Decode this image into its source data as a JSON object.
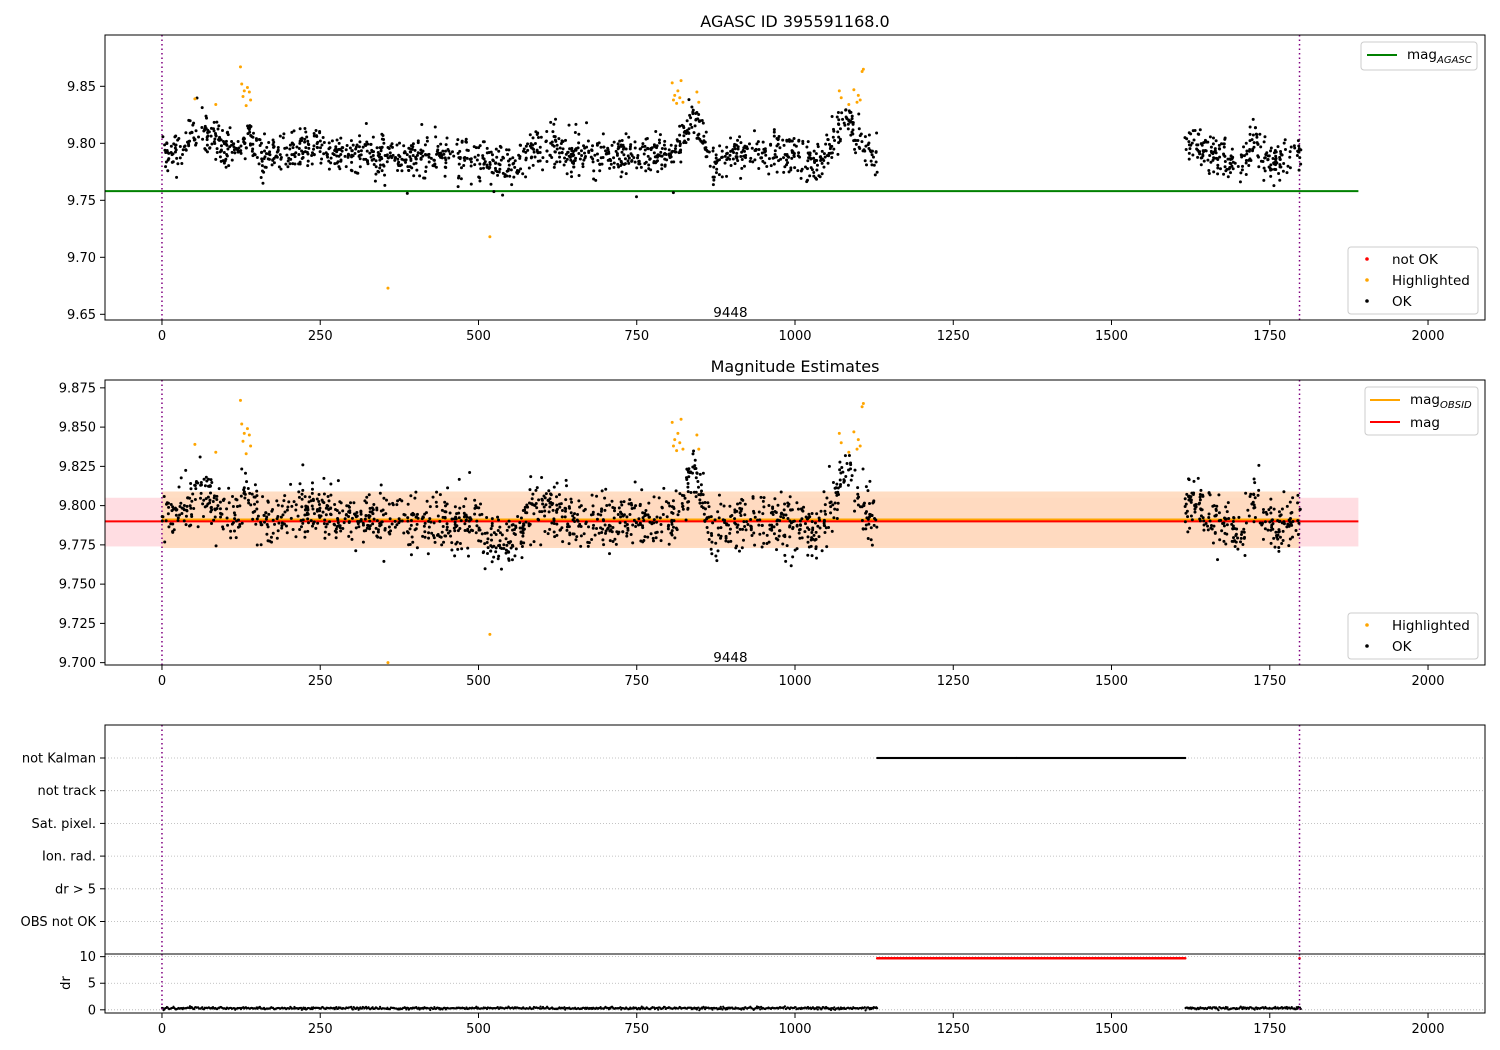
{
  "chart_data": [
    {
      "type": "scatter",
      "name": "magnitude-history",
      "title": "AGASC ID 395591168.0",
      "xlim": [
        -90,
        2090
      ],
      "ylim": [
        9.645,
        9.895
      ],
      "x_ticks": [
        0,
        250,
        500,
        750,
        1000,
        1250,
        1500,
        1750,
        2000
      ],
      "x_tick_labels": [
        "0",
        "250",
        "500",
        "750",
        "1000",
        "1250",
        "1500",
        "1750",
        "2000"
      ],
      "y_ticks": [
        9.65,
        9.7,
        9.75,
        9.8,
        9.85
      ],
      "y_tick_labels": [
        "9.65",
        "9.70",
        "9.75",
        "9.80",
        "9.85"
      ],
      "obsid_boundaries": [
        0,
        1797
      ],
      "obsid_label": {
        "text": "9448",
        "x": 898,
        "y": 9.651
      },
      "reference_line": {
        "name": "mag",
        "subscript": "AGASC",
        "y": 9.758,
        "x_range": [
          -90,
          1890
        ],
        "color": "#008000"
      },
      "ok_segments": [
        {
          "x_range": [
            0,
            1130
          ],
          "baseline": 9.79,
          "noise": 0.011,
          "bumps": [
            [
              60,
              30,
              0.02
            ],
            [
              135,
              15,
              0.015
            ],
            [
              230,
              40,
              0.008
            ],
            [
              540,
              40,
              -0.012
            ],
            [
              600,
              30,
              0.01
            ],
            [
              840,
              20,
              0.03
            ],
            [
              870,
              10,
              -0.015
            ],
            [
              1040,
              15,
              -0.01
            ],
            [
              1080,
              25,
              0.03
            ]
          ]
        },
        {
          "x_range": [
            1615,
            1800
          ],
          "baseline": 9.792,
          "noise": 0.01,
          "bumps": [
            [
              1630,
              12,
              0.01
            ],
            [
              1700,
              20,
              -0.01
            ],
            [
              1725,
              10,
              0.012
            ],
            [
              1760,
              20,
              -0.008
            ]
          ]
        }
      ],
      "highlighted_points": [
        [
          52,
          9.839
        ],
        [
          85,
          9.834
        ],
        [
          124,
          9.867
        ],
        [
          126,
          9.852
        ],
        [
          128,
          9.841
        ],
        [
          130,
          9.846
        ],
        [
          133,
          9.833
        ],
        [
          135,
          9.849
        ],
        [
          138,
          9.845
        ],
        [
          140,
          9.838
        ],
        [
          357,
          9.673
        ],
        [
          518,
          9.718
        ],
        [
          806,
          9.853
        ],
        [
          808,
          9.838
        ],
        [
          810,
          9.842
        ],
        [
          813,
          9.835
        ],
        [
          815,
          9.846
        ],
        [
          818,
          9.84
        ],
        [
          820,
          9.855
        ],
        [
          823,
          9.836
        ],
        [
          845,
          9.845
        ],
        [
          848,
          9.836
        ],
        [
          1070,
          9.846
        ],
        [
          1073,
          9.84
        ],
        [
          1085,
          9.834
        ],
        [
          1093,
          9.847
        ],
        [
          1098,
          9.836
        ],
        [
          1100,
          9.842
        ],
        [
          1103,
          9.838
        ],
        [
          1106,
          9.863
        ],
        [
          1108,
          9.865
        ]
      ],
      "legend_lines": [
        {
          "label": "mag",
          "subscript": "AGASC",
          "color": "#008000"
        }
      ],
      "legend_points": [
        {
          "label": "not OK",
          "color": "#ff0000"
        },
        {
          "label": "Highlighted",
          "color": "#ffa500"
        },
        {
          "label": "OK",
          "color": "#000000"
        }
      ],
      "legend_placement": [
        "top-right",
        "bottom-right"
      ],
      "grid": false
    },
    {
      "type": "scatter",
      "name": "magnitude-estimates",
      "title": "Magnitude Estimates",
      "xlim": [
        -90,
        2090
      ],
      "ylim": [
        9.6985,
        9.88
      ],
      "x_ticks": [
        0,
        250,
        500,
        750,
        1000,
        1250,
        1500,
        1750,
        2000
      ],
      "x_tick_labels": [
        "0",
        "250",
        "500",
        "750",
        "1000",
        "1250",
        "1500",
        "1750",
        "2000"
      ],
      "y_ticks": [
        9.7,
        9.725,
        9.75,
        9.775,
        9.8,
        9.825,
        9.85,
        9.875
      ],
      "y_tick_labels": [
        "9.700",
        "9.725",
        "9.750",
        "9.775",
        "9.800",
        "9.825",
        "9.850",
        "9.875"
      ],
      "obsid_boundaries": [
        0,
        1797
      ],
      "obsid_label": {
        "text": "9448",
        "x": 898,
        "y": 9.703
      },
      "mag_line": {
        "name": "mag",
        "y": 9.79,
        "x_range": [
          -90,
          1890
        ],
        "band": [
          9.774,
          9.805
        ],
        "color": "#ff0000",
        "band_color": "#ffdde2"
      },
      "mag_obsid_line": {
        "name": "mag",
        "subscript": "OBSID",
        "y": 9.791,
        "x_range": [
          0,
          1797
        ],
        "band": [
          9.773,
          9.809
        ],
        "color": "#ffa500",
        "band_color": "#ffd9bd"
      },
      "ok_segments": [
        {
          "x_range": [
            0,
            1130
          ],
          "baseline": 9.79,
          "noise": 0.011,
          "bumps": [
            [
              60,
              30,
              0.02
            ],
            [
              135,
              15,
              0.015
            ],
            [
              230,
              40,
              0.008
            ],
            [
              540,
              40,
              -0.012
            ],
            [
              600,
              30,
              0.01
            ],
            [
              840,
              20,
              0.03
            ],
            [
              870,
              10,
              -0.015
            ],
            [
              1040,
              15,
              -0.01
            ],
            [
              1080,
              25,
              0.03
            ]
          ]
        },
        {
          "x_range": [
            1615,
            1800
          ],
          "baseline": 9.792,
          "noise": 0.01,
          "bumps": [
            [
              1630,
              12,
              0.01
            ],
            [
              1700,
              20,
              -0.01
            ],
            [
              1725,
              10,
              0.012
            ],
            [
              1760,
              20,
              -0.008
            ]
          ]
        }
      ],
      "highlighted_points": [
        [
          52,
          9.839
        ],
        [
          85,
          9.834
        ],
        [
          124,
          9.867
        ],
        [
          126,
          9.852
        ],
        [
          128,
          9.841
        ],
        [
          130,
          9.846
        ],
        [
          133,
          9.833
        ],
        [
          135,
          9.849
        ],
        [
          138,
          9.845
        ],
        [
          140,
          9.838
        ],
        [
          357,
          9.7
        ],
        [
          518,
          9.718
        ],
        [
          806,
          9.853
        ],
        [
          808,
          9.838
        ],
        [
          810,
          9.842
        ],
        [
          813,
          9.835
        ],
        [
          815,
          9.846
        ],
        [
          818,
          9.84
        ],
        [
          820,
          9.855
        ],
        [
          823,
          9.836
        ],
        [
          845,
          9.845
        ],
        [
          848,
          9.836
        ],
        [
          1070,
          9.846
        ],
        [
          1073,
          9.84
        ],
        [
          1085,
          9.834
        ],
        [
          1093,
          9.847
        ],
        [
          1098,
          9.836
        ],
        [
          1100,
          9.842
        ],
        [
          1103,
          9.838
        ],
        [
          1106,
          9.863
        ],
        [
          1108,
          9.865
        ]
      ],
      "legend_lines": [
        {
          "label": "mag",
          "subscript": "OBSID",
          "color": "#ffa500"
        },
        {
          "label": "mag",
          "subscript": "",
          "color": "#ff0000"
        }
      ],
      "legend_points": [
        {
          "label": "Highlighted",
          "color": "#ffa500"
        },
        {
          "label": "OK",
          "color": "#000000"
        }
      ],
      "legend_placement": [
        "top-right",
        "bottom-right"
      ],
      "grid": false
    },
    {
      "type": "scatter",
      "name": "flags",
      "title": "",
      "xlim": [
        -90,
        2090
      ],
      "categories": [
        "not Kalman",
        "not track",
        "Sat. pixel.",
        "Ion. rad.",
        "dr > 5",
        "OBS not OK"
      ],
      "flag_ranges": {
        "not Kalman": [
          [
            1130,
            1617
          ]
        ]
      },
      "obsid_boundaries": [
        0,
        1797
      ],
      "grid": "horizontal dotted"
    },
    {
      "type": "scatter",
      "name": "dr",
      "title": "",
      "ylabel": "dr",
      "xlim": [
        -90,
        2090
      ],
      "ylim": [
        -0.6,
        10.5
      ],
      "x_ticks": [
        0,
        250,
        500,
        750,
        1000,
        1250,
        1500,
        1750,
        2000
      ],
      "x_tick_labels": [
        "0",
        "250",
        "500",
        "750",
        "1000",
        "1250",
        "1500",
        "1750",
        "2000"
      ],
      "y_ticks": [
        0,
        5,
        10
      ],
      "y_tick_labels": [
        "0",
        "5",
        "10"
      ],
      "black_segments": [
        {
          "x_range": [
            0,
            1130
          ],
          "y": 0.3
        },
        {
          "x_range": [
            1617,
            1800
          ],
          "y": 0.3
        }
      ],
      "red_segment": {
        "x_range": [
          1130,
          1617
        ],
        "y": 9.7
      },
      "obsid_boundaries": [
        0,
        1797
      ],
      "grid": "horizontal dotted"
    }
  ]
}
